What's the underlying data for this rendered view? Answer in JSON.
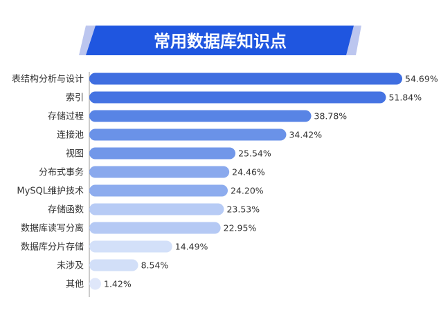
{
  "chart_data": {
    "type": "bar",
    "orientation": "horizontal",
    "title": "常用数据库知识点",
    "categories": [
      "表结构分析与设计",
      "索引",
      "存储过程",
      "连接池",
      "视图",
      "分布式事务",
      "MySQL维护技术",
      "存储函数",
      "数据库读写分离",
      "数据库分片存储",
      "未涉及",
      "其他"
    ],
    "values": [
      54.69,
      51.84,
      38.78,
      34.42,
      25.54,
      24.46,
      24.2,
      23.53,
      22.95,
      14.49,
      8.54,
      1.42
    ],
    "value_labels": [
      "54.69%",
      "51.84%",
      "38.78%",
      "34.42%",
      "25.54%",
      "24.46%",
      "24.20%",
      "23.53%",
      "22.95%",
      "14.49%",
      "8.54%",
      "1.42%"
    ],
    "unit": "%",
    "bar_colors": [
      "#3f6ee0",
      "#4573e2",
      "#5884e5",
      "#6a92e8",
      "#7197e9",
      "#8aa9ed",
      "#8dacee",
      "#b7cbf5",
      "#b5c9f4",
      "#d3e0f9",
      "#d2dff8",
      "#dfe7fa"
    ],
    "title_banner_color": "#1f56e0",
    "title_banner_shadow_color": "#bcc6ef",
    "grid": false
  }
}
